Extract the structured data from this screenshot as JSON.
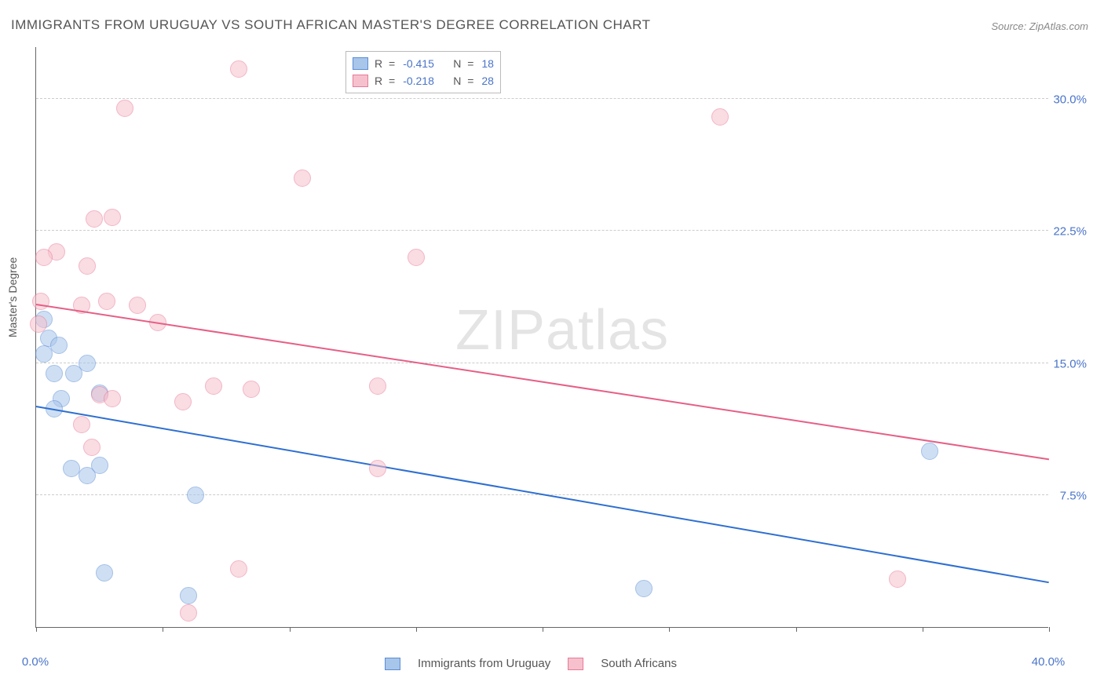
{
  "title": "IMMIGRANTS FROM URUGUAY VS SOUTH AFRICAN MASTER'S DEGREE CORRELATION CHART",
  "source": "Source: ZipAtlas.com",
  "ylabel": "Master's Degree",
  "watermark": {
    "bold": "ZIP",
    "light": "atlas"
  },
  "chart": {
    "type": "scatter",
    "xlim": [
      0,
      40
    ],
    "ylim": [
      0,
      33
    ],
    "x_ticks": [
      0,
      40
    ],
    "x_tick_labels": [
      "0.0%",
      "40.0%"
    ],
    "x_minor_ticks": [
      5,
      10,
      15,
      20,
      25,
      30,
      35
    ],
    "y_gridlines": [
      7.5,
      15.0,
      22.5,
      30.0
    ],
    "y_tick_labels": [
      "7.5%",
      "15.0%",
      "22.5%",
      "30.0%"
    ],
    "background_color": "#ffffff",
    "grid_color": "#cccccc",
    "axis_color": "#666666",
    "label_color": "#4a74c9",
    "marker_radius": 11,
    "marker_opacity": 0.55,
    "series": [
      {
        "name": "Immigrants from Uruguay",
        "fill": "#a8c5ea",
        "stroke": "#5b8dd6",
        "line_color": "#2e6fd1",
        "r_value": "-0.415",
        "n_value": "18",
        "points": [
          [
            0.3,
            17.5
          ],
          [
            0.5,
            16.4
          ],
          [
            0.9,
            16.0
          ],
          [
            0.3,
            15.5
          ],
          [
            0.7,
            14.4
          ],
          [
            1.5,
            14.4
          ],
          [
            2.0,
            15.0
          ],
          [
            1.0,
            13.0
          ],
          [
            2.5,
            13.3
          ],
          [
            0.7,
            12.4
          ],
          [
            2.5,
            9.2
          ],
          [
            1.4,
            9.0
          ],
          [
            2.0,
            8.6
          ],
          [
            6.3,
            7.5
          ],
          [
            2.7,
            3.1
          ],
          [
            6.0,
            1.8
          ],
          [
            24.0,
            2.2
          ],
          [
            35.3,
            10.0
          ]
        ],
        "trend": {
          "x1": 0,
          "y1": 12.6,
          "x2": 40,
          "y2": 2.6
        }
      },
      {
        "name": "South Africans",
        "fill": "#f6c1cd",
        "stroke": "#e87a98",
        "line_color": "#e65f86",
        "r_value": "-0.218",
        "n_value": "28",
        "points": [
          [
            8.0,
            31.7
          ],
          [
            3.5,
            29.5
          ],
          [
            27.0,
            29.0
          ],
          [
            10.5,
            25.5
          ],
          [
            0.8,
            21.3
          ],
          [
            2.3,
            23.2
          ],
          [
            3.0,
            23.3
          ],
          [
            0.3,
            21.0
          ],
          [
            2.0,
            20.5
          ],
          [
            15.0,
            21.0
          ],
          [
            0.2,
            18.5
          ],
          [
            1.8,
            18.3
          ],
          [
            2.8,
            18.5
          ],
          [
            4.0,
            18.3
          ],
          [
            0.1,
            17.2
          ],
          [
            4.8,
            17.3
          ],
          [
            2.5,
            13.2
          ],
          [
            3.0,
            13.0
          ],
          [
            5.8,
            12.8
          ],
          [
            7.0,
            13.7
          ],
          [
            8.5,
            13.5
          ],
          [
            13.5,
            13.7
          ],
          [
            1.8,
            11.5
          ],
          [
            2.2,
            10.2
          ],
          [
            13.5,
            9.0
          ],
          [
            8.0,
            3.3
          ],
          [
            34.0,
            2.7
          ],
          [
            6.0,
            0.8
          ]
        ],
        "trend": {
          "x1": 0,
          "y1": 18.4,
          "x2": 40,
          "y2": 9.6
        }
      }
    ]
  },
  "legend_top": {
    "r_label": "R  =",
    "n_label": "N  ="
  },
  "legend_bottom": {
    "items": [
      "Immigrants from Uruguay",
      "South Africans"
    ]
  }
}
